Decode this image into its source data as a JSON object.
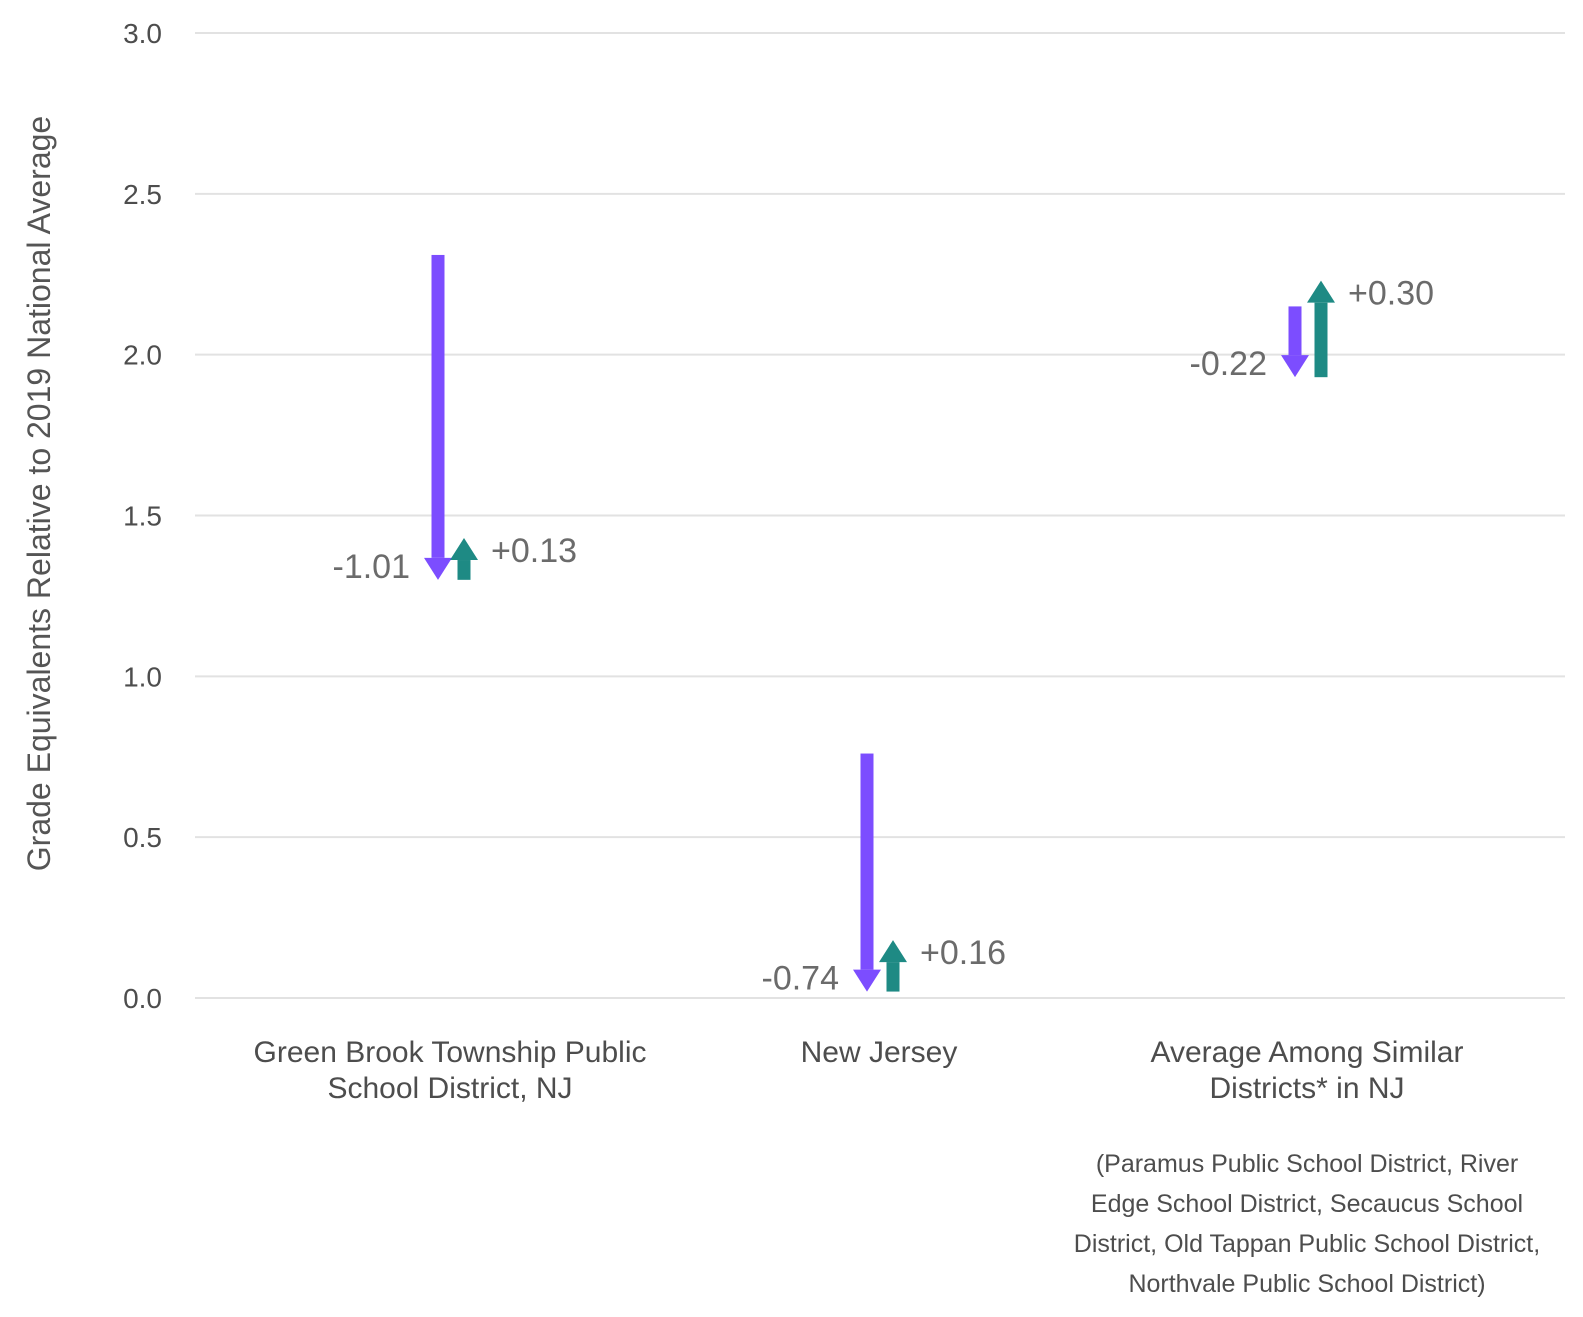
{
  "chart_data": {
    "type": "arrow",
    "ylabel": "Grade Equivalents Relative to 2019 National Average",
    "ylim": [
      0,
      3.0
    ],
    "yticks": [
      "0.0",
      "0.5",
      "1.0",
      "1.5",
      "2.0",
      "2.5",
      "3.0"
    ],
    "grid": true,
    "colors": {
      "decline": "#7c4dff",
      "recovery": "#1e8a84"
    },
    "groups": [
      {
        "category_lines": [
          "Green Brook Township Public",
          "School District, NJ"
        ],
        "start": 2.31,
        "decline": -1.01,
        "recovery": 0.13,
        "decline_label": "-1.01",
        "recovery_label": "+0.13"
      },
      {
        "category_lines": [
          "New Jersey"
        ],
        "start": 0.76,
        "decline": -0.74,
        "recovery": 0.16,
        "decline_label": "-0.74",
        "recovery_label": "+0.16"
      },
      {
        "category_lines": [
          "Average Among Similar",
          "Districts* in NJ"
        ],
        "start": 2.15,
        "decline": -0.22,
        "recovery": 0.3,
        "decline_label": "-0.22",
        "recovery_label": "+0.30",
        "note_lines": [
          "(Paramus Public School District, River",
          "Edge School District, Secaucus School",
          "District, Old Tappan Public School District,",
          "Northvale Public School District)"
        ]
      }
    ]
  }
}
